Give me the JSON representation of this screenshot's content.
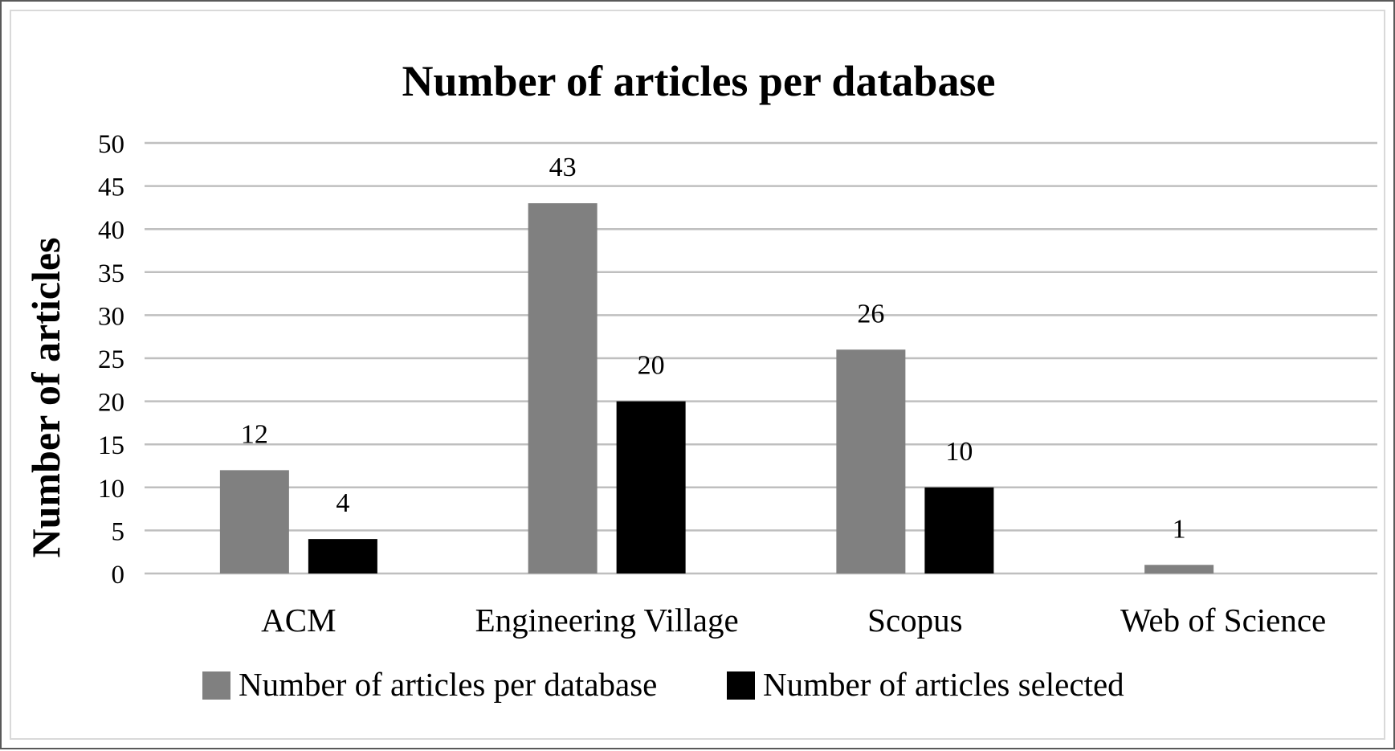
{
  "chart_data": {
    "type": "bar",
    "title": "Number of articles per database",
    "xlabel": "",
    "ylabel": "Number of articles",
    "categories": [
      "ACM",
      "Engineering Village",
      "Scopus",
      "Web of Science"
    ],
    "series": [
      {
        "name": "Number of articles per database",
        "values": [
          12,
          43,
          26,
          1
        ],
        "color": "#808080"
      },
      {
        "name": "Number of articles selected",
        "values": [
          4,
          20,
          10,
          null
        ],
        "color": "#000000"
      }
    ],
    "ylim": [
      0,
      50
    ],
    "yticks": [
      0,
      5,
      10,
      15,
      20,
      25,
      30,
      35,
      40,
      45,
      50
    ],
    "grid": true,
    "legend": "bottom",
    "data_labels": true
  }
}
